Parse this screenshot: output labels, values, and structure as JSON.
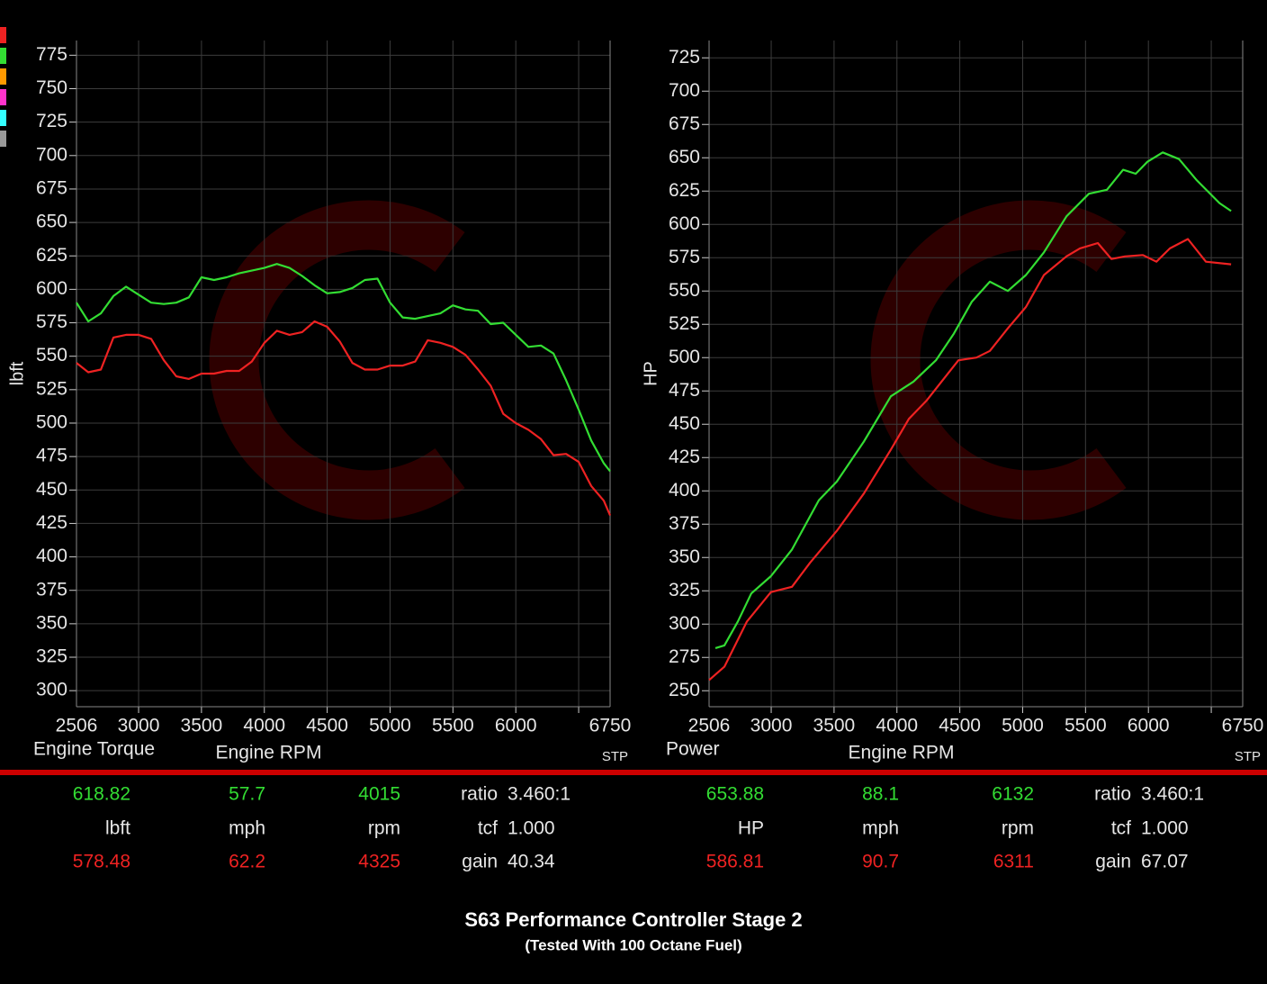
{
  "chart_data": [
    {
      "type": "line",
      "title": "Engine Torque",
      "xlabel": "Engine RPM",
      "ylabel": "lbft",
      "note": "STP",
      "x": [
        2506,
        2600,
        2700,
        2800,
        2900,
        3000,
        3100,
        3200,
        3300,
        3400,
        3500,
        3600,
        3700,
        3800,
        3900,
        4000,
        4100,
        4200,
        4300,
        4400,
        4500,
        4600,
        4700,
        4800,
        4900,
        5000,
        5100,
        5200,
        5300,
        5400,
        5500,
        5600,
        5700,
        5800,
        5900,
        6000,
        6100,
        6200,
        6300,
        6400,
        6500,
        6600,
        6700,
        6750
      ],
      "series": [
        {
          "color": "#33dd33",
          "values": [
            590,
            576,
            582,
            595,
            602,
            596,
            590,
            589,
            590,
            594,
            609,
            607,
            609,
            612,
            614,
            616,
            619,
            616,
            610,
            603,
            597,
            598,
            601,
            607,
            608,
            590,
            579,
            578,
            580,
            582,
            588,
            585,
            584,
            574,
            575,
            566,
            557,
            558,
            552,
            532,
            510,
            487,
            470,
            464
          ]
        },
        {
          "color": "#ee2222",
          "values": [
            545,
            538,
            540,
            564,
            566,
            566,
            563,
            547,
            535,
            533,
            537,
            537,
            539,
            539,
            546,
            560,
            569,
            566,
            568,
            576,
            572,
            561,
            545,
            540,
            540,
            543,
            543,
            546,
            562,
            560,
            557,
            551,
            540,
            528,
            507,
            500,
            495,
            488,
            476,
            477,
            471,
            453,
            442,
            431
          ]
        }
      ],
      "xlim": [
        2506,
        6750
      ],
      "xticks": [
        2506,
        3000,
        3500,
        4000,
        4500,
        5000,
        5500,
        6000,
        6750
      ],
      "xgrid": [
        3000,
        3500,
        4000,
        4500,
        5000,
        5500,
        6000,
        6500
      ],
      "ylim": [
        288,
        786
      ],
      "yticks": [
        300,
        325,
        350,
        375,
        400,
        425,
        450,
        475,
        500,
        525,
        550,
        575,
        600,
        625,
        650,
        675,
        700,
        725,
        750,
        775
      ],
      "grid": true,
      "readout": {
        "rows": [
          [
            "618.82",
            "57.7",
            "4015"
          ],
          [
            "lbft",
            "mph",
            "rpm"
          ],
          [
            "578.48",
            "62.2",
            "4325"
          ]
        ],
        "params": [
          [
            "ratio",
            "3.460:1"
          ],
          [
            "tcf",
            "1.000"
          ],
          [
            "gain",
            "40.34"
          ]
        ]
      }
    },
    {
      "type": "line",
      "title": "Power",
      "xlabel": "Engine RPM",
      "ylabel": "HP",
      "note": "STP",
      "series": [
        {
          "color": "#33dd33",
          "x": [
            2556,
            2628,
            2735,
            2842,
            2998,
            3165,
            3379,
            3522,
            3737,
            3952,
            4131,
            4310,
            4453,
            4596,
            4739,
            4882,
            5026,
            5169,
            5348,
            5527,
            5670,
            5799,
            5899,
            5992,
            6114,
            6243,
            6386,
            6565,
            6658
          ],
          "values": [
            282,
            284,
            302,
            323,
            336,
            356,
            393,
            407,
            437,
            471,
            482,
            498,
            518,
            542,
            557,
            550,
            562,
            579,
            606,
            623,
            626,
            641,
            638,
            647,
            654,
            649,
            633,
            616,
            610
          ]
        },
        {
          "color": "#ee2222",
          "x": [
            2506,
            2628,
            2807,
            2998,
            3165,
            3308,
            3522,
            3737,
            3952,
            4095,
            4238,
            4346,
            4489,
            4632,
            4739,
            4882,
            5026,
            5169,
            5348,
            5455,
            5598,
            5706,
            5813,
            5956,
            6064,
            6171,
            6314,
            6457,
            6658
          ],
          "values": [
            258,
            268,
            302,
            324,
            328,
            346,
            370,
            398,
            431,
            454,
            468,
            481,
            498,
            500,
            505,
            522,
            538,
            562,
            576,
            582,
            586,
            574,
            576,
            577,
            572,
            582,
            589,
            572,
            570
          ]
        }
      ],
      "xlim": [
        2506,
        6750
      ],
      "xticks": [
        2506,
        3000,
        3500,
        4000,
        4500,
        5000,
        5500,
        6000,
        6750
      ],
      "xgrid": [
        3000,
        3500,
        4000,
        4500,
        5000,
        5500,
        6000,
        6500
      ],
      "ylim": [
        238,
        738
      ],
      "yticks": [
        250,
        275,
        300,
        325,
        350,
        375,
        400,
        425,
        450,
        475,
        500,
        525,
        550,
        575,
        600,
        625,
        650,
        675,
        700,
        725
      ],
      "grid": true,
      "readout": {
        "rows": [
          [
            "653.88",
            "88.1",
            "6132"
          ],
          [
            "HP",
            "mph",
            "rpm"
          ],
          [
            "586.81",
            "90.7",
            "6311"
          ]
        ],
        "params": [
          [
            "ratio",
            "3.460:1"
          ],
          [
            "tcf",
            "1.000"
          ],
          [
            "gain",
            "67.07"
          ]
        ]
      }
    }
  ],
  "footer": {
    "title": "S63 Performance Controller Stage 2",
    "subtitle": "(Tested With 100 Octane Fuel)"
  }
}
